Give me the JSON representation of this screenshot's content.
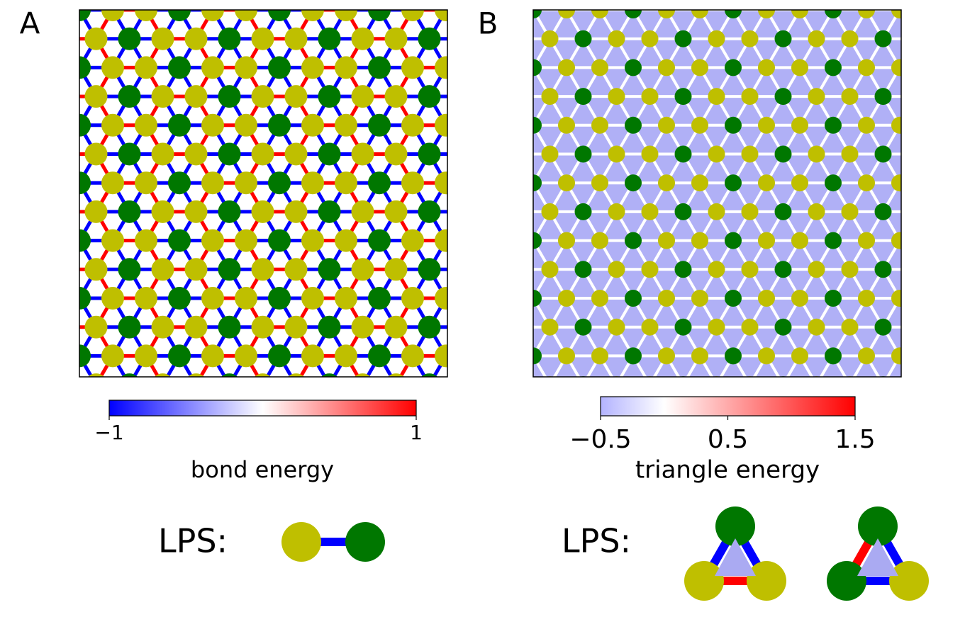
{
  "panels": [
    {
      "label": "A",
      "colorbar": {
        "label": "bond energy",
        "lim": [
          -1,
          1
        ],
        "ticks": [
          {
            "value": -1,
            "label": "−1"
          },
          1
        ]
      },
      "legend_label": "LPS:"
    },
    {
      "label": "B",
      "colorbar": {
        "label": "triangle energy",
        "lim": [
          -0.5,
          1.5
        ],
        "ticks": [
          {
            "value": -0.5,
            "label": "−0.5"
          },
          0.5,
          1.5
        ]
      },
      "legend_label": "LPS:"
    }
  ]
}
